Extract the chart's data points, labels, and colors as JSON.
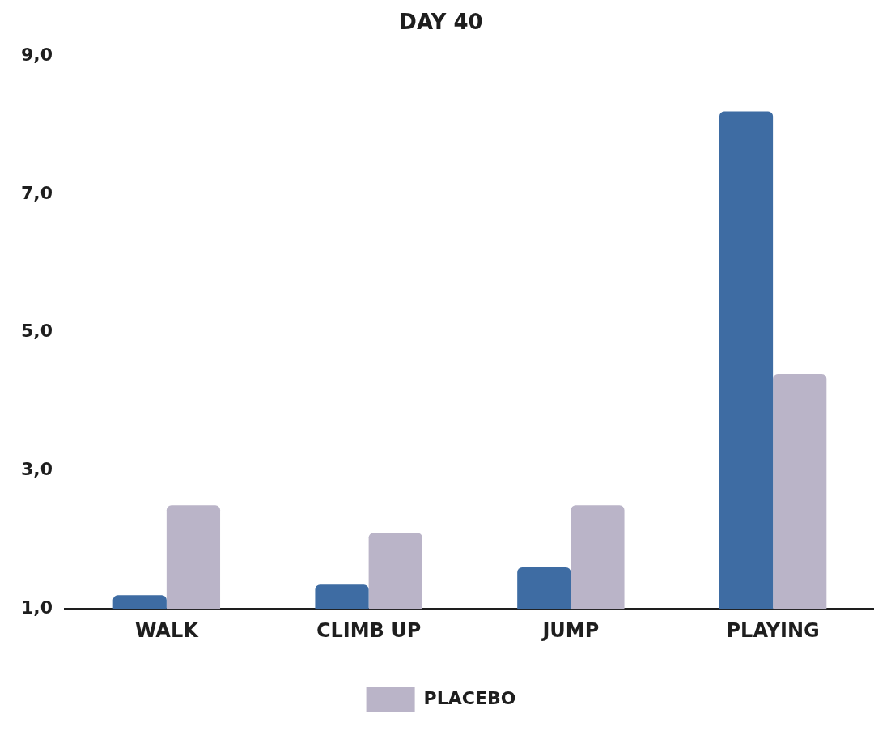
{
  "chart_data": {
    "type": "bar",
    "title": "DAY 40",
    "categories": [
      "WALK",
      "CLIMB UP",
      "JUMP",
      "PLAYING"
    ],
    "series": [
      {
        "color": "#3e6ca3",
        "values": [
          1.2,
          1.35,
          1.6,
          8.2
        ]
      },
      {
        "name": "PLACEBO",
        "color": "#bab4c8",
        "values": [
          2.5,
          2.1,
          2.5,
          4.4
        ]
      }
    ],
    "ylim": [
      1,
      9
    ],
    "yticks": [
      {
        "value": 1,
        "label": "1,0"
      },
      {
        "value": 3,
        "label": "3,0"
      },
      {
        "value": 5,
        "label": "5,0"
      },
      {
        "value": 7,
        "label": "7,0"
      },
      {
        "value": 9,
        "label": "9,0"
      }
    ],
    "grid": false,
    "legend": "bottom"
  }
}
